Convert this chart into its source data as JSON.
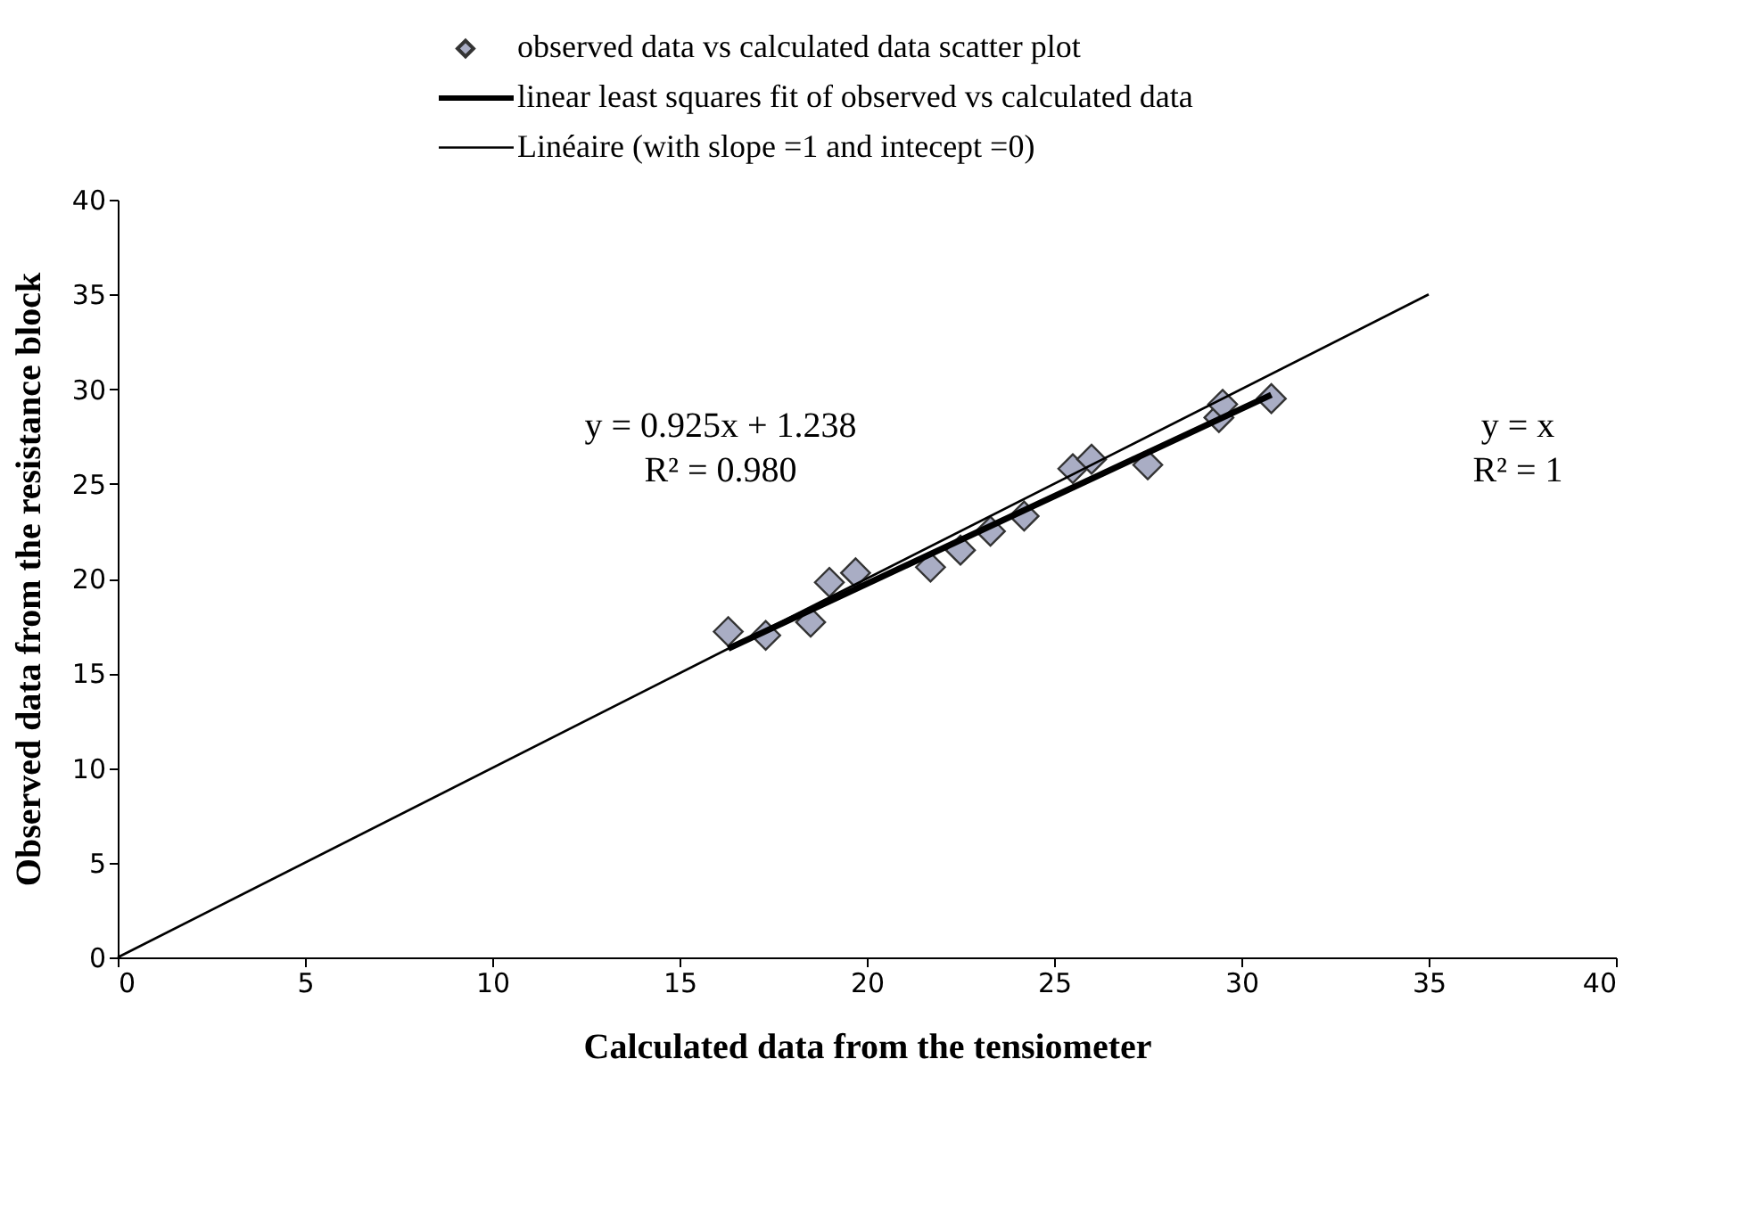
{
  "chart_data": {
    "type": "scatter",
    "xlabel": "Calculated data from the tensiometer",
    "ylabel": "Observed data from the resistance block",
    "xlim": [
      0,
      40
    ],
    "ylim": [
      0,
      40
    ],
    "xticks": [
      0,
      5,
      10,
      15,
      20,
      25,
      30,
      35,
      40
    ],
    "yticks": [
      0,
      5,
      10,
      15,
      20,
      25,
      30,
      35,
      40
    ],
    "grid": false,
    "legend": "top",
    "series": [
      {
        "name": "observed data vs calculated data scatter plot",
        "marker": "diamond",
        "color": "#a9adc4",
        "x": [
          16.3,
          17.3,
          18.5,
          19.0,
          19.7,
          21.7,
          22.5,
          23.3,
          24.2,
          25.5,
          26.0,
          27.5,
          29.4,
          29.5,
          30.8
        ],
        "values": [
          17.2,
          17.0,
          17.7,
          19.8,
          20.3,
          20.6,
          21.5,
          22.5,
          23.3,
          25.8,
          26.3,
          26.0,
          28.5,
          29.2,
          29.5
        ]
      },
      {
        "name": "linear least squares fit of observed vs calculated data",
        "type": "line",
        "color": "#000000",
        "x": [
          16.3,
          30.8
        ],
        "values": [
          16.3,
          29.7
        ]
      },
      {
        "name": "Linéaire (with slope =1 and intecept =0)",
        "type": "line",
        "color": "#000000",
        "x": [
          0,
          35
        ],
        "values": [
          0,
          35
        ]
      }
    ],
    "annotations": [
      "y = 0.925x + 1.238",
      "R² = 0.980",
      "y = x",
      "R² = 1"
    ]
  }
}
